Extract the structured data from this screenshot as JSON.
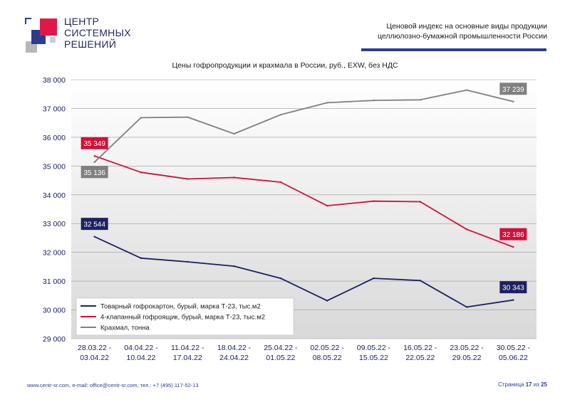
{
  "header": {
    "logo_lines": [
      "ЦЕНТР",
      "СИСТЕМНЫХ",
      "РЕШЕНИЙ"
    ],
    "title_line1": "Ценовой индекс на основные виды продукции",
    "title_line2": "целлюлозно-бумажной промышленности России"
  },
  "footer": {
    "contacts": "www.centr-sr.com, e-mail: office@centr-sr.com, тел.: +7 (495) 117-52-13",
    "page_prefix": "Страница ",
    "page_num": "17",
    "page_mid": " из ",
    "page_total": "25"
  },
  "colors": {
    "navy": "#1c2160",
    "red": "#d0103a",
    "gray": "#808080",
    "accent_bar": "#2b3d8f"
  },
  "chart_data": {
    "type": "line",
    "title": "Цены гофропродукции и крахмала в России, руб., EXW, без НДС",
    "ylim": [
      29000,
      38000
    ],
    "yticks": [
      29000,
      30000,
      31000,
      32000,
      33000,
      34000,
      35000,
      36000,
      37000,
      38000
    ],
    "ytick_labels": [
      "29 000",
      "30 000",
      "31 000",
      "32 000",
      "33 000",
      "34 000",
      "35 000",
      "36 000",
      "37 000",
      "38 000"
    ],
    "categories": [
      [
        "28.03.22 -",
        "03.04.22"
      ],
      [
        "04.04.22 -",
        "10.04.22"
      ],
      [
        "11.04.22 -",
        "17.04.22"
      ],
      [
        "18.04.22 -",
        "24.04.22"
      ],
      [
        "25.04.22 -",
        "01.05.22"
      ],
      [
        "02.05.22 -",
        "08.05.22"
      ],
      [
        "09.05.22 -",
        "15.05.22"
      ],
      [
        "16.05.22 -",
        "22.05.22"
      ],
      [
        "23.05.22 -",
        "29.05.22"
      ],
      [
        "30.05.22 -",
        "05.06.22"
      ]
    ],
    "legend_position": "bottom-left",
    "series": [
      {
        "name": "Товарный гофрокартон, бурый, марка Т-23, тыс.м2",
        "color": "#1c2160",
        "values": [
          32544,
          31800,
          31670,
          31520,
          31100,
          30320,
          31100,
          31020,
          30100,
          30343
        ],
        "first_label": "32 544",
        "last_label": "30 343"
      },
      {
        "name": "4-клапанный гофроящик, бурый, марка Т-23, тыс.м2",
        "color": "#d0103a",
        "values": [
          35349,
          34780,
          34550,
          34600,
          34440,
          33620,
          33780,
          33760,
          32800,
          32186
        ],
        "first_label": "35 349",
        "last_label": "32 186"
      },
      {
        "name": "Крахмал, тонна",
        "color": "#808080",
        "values": [
          35136,
          36680,
          36700,
          36120,
          36780,
          37200,
          37280,
          37300,
          37640,
          37239
        ],
        "first_label": "35 136",
        "last_label": "37 239"
      }
    ]
  }
}
